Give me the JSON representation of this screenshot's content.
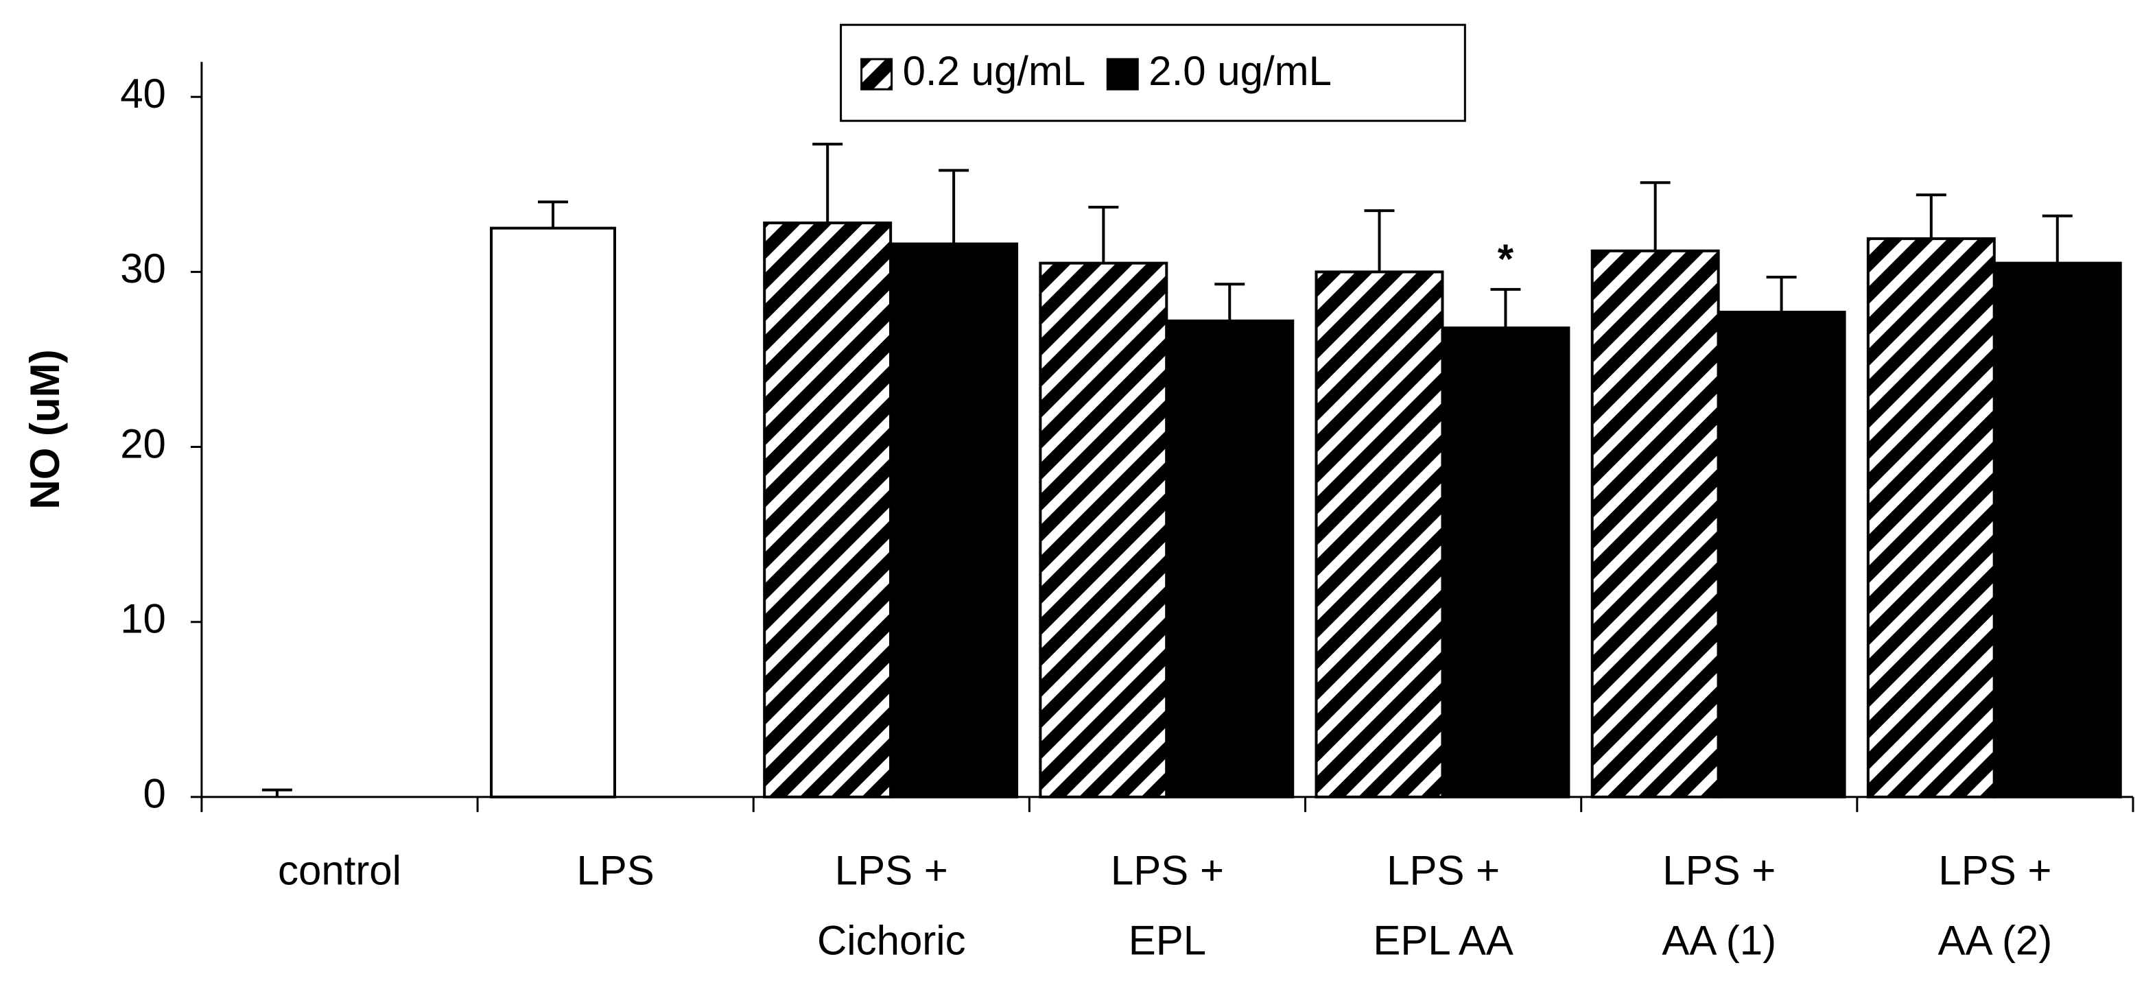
{
  "chart_data": {
    "type": "bar",
    "y_label": "NO (uM)",
    "categories": [
      [
        "control"
      ],
      [
        "LPS"
      ],
      [
        "LPS +",
        "Cichoric"
      ],
      [
        "LPS +",
        "EPL"
      ],
      [
        "LPS +",
        "EPL AA"
      ],
      [
        "LPS +",
        "AA (1)"
      ],
      [
        "LPS +",
        "AA (2)"
      ]
    ],
    "values": [
      0,
      32.5,
      null,
      null,
      null,
      null,
      null
    ],
    "errors": [
      0.4,
      1.5,
      null,
      null,
      null,
      null,
      null
    ],
    "color": "#ffffff",
    "series": [
      {
        "name": "0.2 ug/mL",
        "color": "#000000",
        "hatch": true,
        "values": [
          null,
          null,
          32.8,
          30.5,
          30.0,
          31.2,
          31.9
        ],
        "errors": [
          null,
          null,
          4.5,
          3.2,
          3.5,
          3.9,
          2.5
        ]
      },
      {
        "name": "2.0 ug/mL",
        "color": "#000000",
        "hatch": false,
        "values": [
          null,
          null,
          31.6,
          27.2,
          26.8,
          27.7,
          30.5
        ],
        "errors": [
          null,
          null,
          4.2,
          2.1,
          2.2,
          2.0,
          2.7
        ]
      }
    ],
    "annotations": [
      {
        "text": "*",
        "series": 1,
        "category": 4
      }
    ],
    "ylim": [
      0,
      42
    ],
    "yticks": [
      0,
      10,
      20,
      30,
      40
    ],
    "grid": false,
    "legend": "top"
  }
}
